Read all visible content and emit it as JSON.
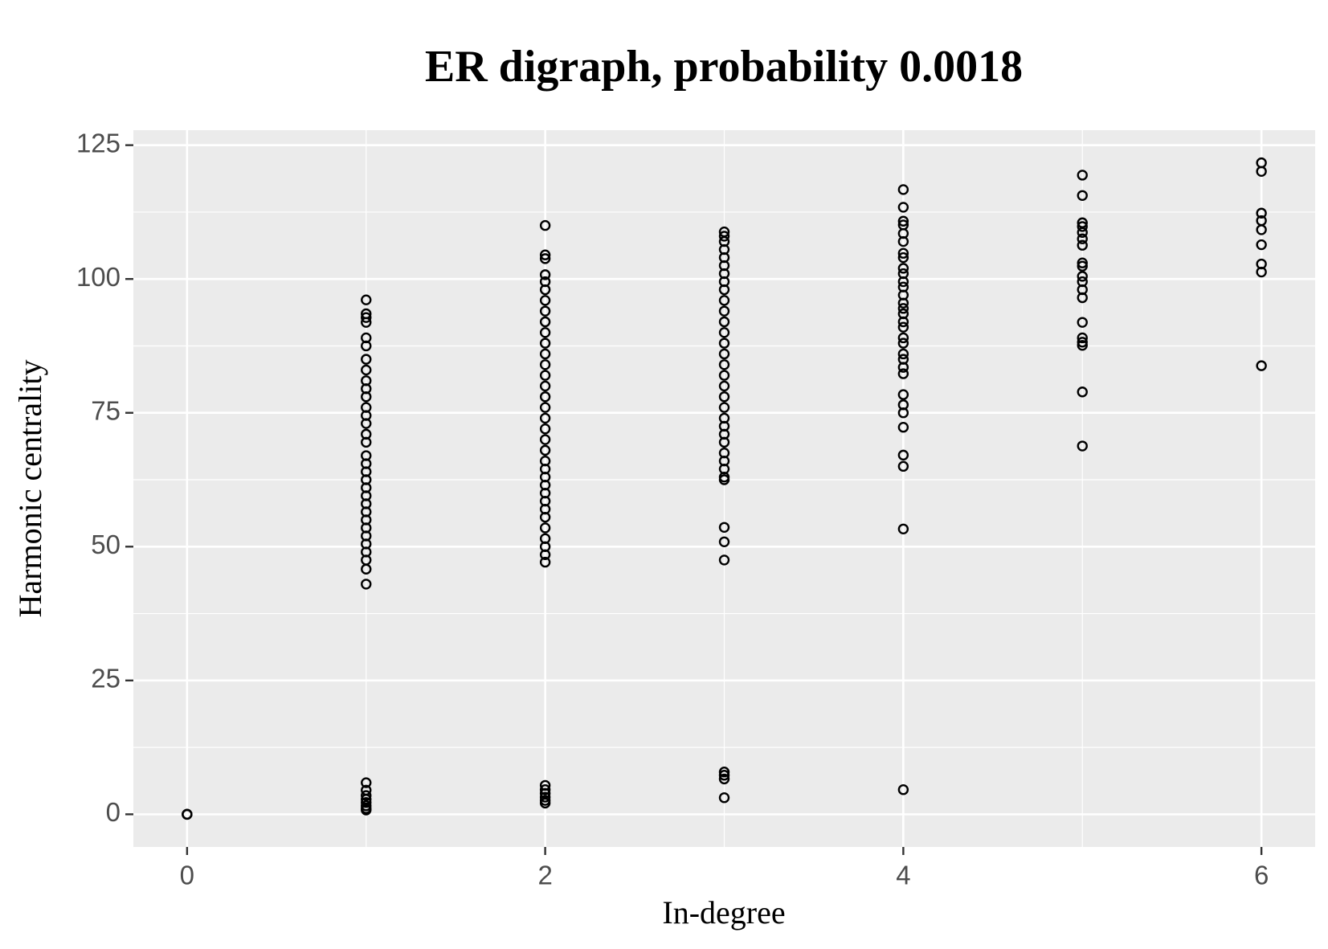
{
  "chart_data": {
    "type": "scatter",
    "title": "ER digraph, probability 0.0018",
    "x_label": "In-degree",
    "y_label": "Harmonic centrality",
    "x": [
      0,
      0,
      0,
      1,
      1,
      1,
      1,
      1,
      1,
      1,
      1,
      1,
      1,
      1,
      1,
      1,
      1,
      1,
      1,
      1,
      1,
      1,
      1,
      1,
      1,
      1,
      1,
      1,
      1,
      1,
      1,
      1,
      1,
      1,
      1,
      1,
      1,
      1,
      1,
      1,
      1,
      1,
      1,
      2,
      2,
      2,
      2,
      2,
      2,
      2,
      2,
      2,
      2,
      2,
      2,
      2,
      2,
      2,
      2,
      2,
      2,
      2,
      2,
      2,
      2,
      2,
      2,
      2,
      2,
      2,
      2,
      2,
      2,
      2,
      2,
      2,
      2,
      2,
      2,
      2,
      2,
      2,
      2,
      3,
      3,
      3,
      3,
      3,
      3,
      3,
      3,
      3,
      3,
      3,
      3,
      3,
      3,
      3,
      3,
      3,
      3,
      3,
      3,
      3,
      3,
      3,
      3,
      3,
      3,
      3,
      3,
      3,
      3,
      3,
      3,
      3,
      3,
      3,
      3,
      4,
      4,
      4,
      4,
      4,
      4,
      4,
      4,
      4,
      4,
      4,
      4,
      4,
      4,
      4,
      4,
      4,
      4,
      4,
      4,
      4,
      4,
      4,
      4,
      4,
      4,
      4,
      4,
      4,
      4,
      4,
      4,
      5,
      5,
      5,
      5,
      5,
      5,
      5,
      5,
      5,
      5,
      5,
      5,
      5,
      5,
      5,
      5,
      5,
      5,
      5,
      6,
      6,
      6,
      6,
      6,
      6,
      6,
      6,
      6
    ],
    "values": [
      0,
      0,
      0,
      96.1,
      93.5,
      92.8,
      91.9,
      89,
      87.5,
      85,
      83,
      81,
      79.5,
      78,
      76,
      74.5,
      73,
      71,
      69.5,
      67,
      65.5,
      64,
      62.5,
      61,
      59.5,
      58,
      56.5,
      55,
      53.5,
      52,
      50.5,
      49,
      47.5,
      45.8,
      43,
      5.9,
      4.5,
      3.5,
      2.8,
      2.2,
      1.6,
      1.1,
      0.8,
      110,
      104.5,
      103.8,
      100.8,
      99.5,
      98,
      96,
      94,
      92,
      90,
      88,
      86,
      84,
      82,
      80,
      78,
      76,
      74,
      72,
      70,
      68,
      66,
      64.5,
      63,
      61.5,
      60,
      58.5,
      57,
      55.5,
      53.5,
      51.5,
      50,
      48.5,
      47.1,
      5.4,
      4.6,
      3.9,
      3.2,
      2.6,
      2.1,
      108.8,
      108,
      107,
      105.5,
      104,
      102.5,
      101,
      99.5,
      98,
      96,
      94,
      92,
      90,
      88,
      86,
      84,
      82,
      80,
      78,
      76,
      74,
      72.5,
      71,
      69.5,
      67.5,
      66,
      64.5,
      63,
      62.5,
      53.6,
      50.9,
      47.5,
      7.9,
      7.3,
      6.6,
      3.1,
      116.7,
      113.4,
      110.8,
      110.1,
      108.5,
      107,
      104.8,
      104,
      102,
      101,
      99.5,
      98.5,
      97,
      95.5,
      94.5,
      93.5,
      92,
      91,
      89,
      88,
      86,
      85,
      83.5,
      82.3,
      78.4,
      76.5,
      75,
      72.3,
      67.1,
      65,
      53.3,
      4.6,
      119.4,
      115.6,
      110.5,
      109.8,
      108.7,
      107.5,
      106.3,
      103,
      102.4,
      100.5,
      99.5,
      98,
      96.5,
      91.9,
      89,
      88.2,
      87.6,
      78.9,
      68.8,
      121.7,
      120.1,
      112.3,
      110.9,
      109.2,
      106.4,
      102.8,
      101.3,
      83.8
    ],
    "color": "#000000",
    "xlim": [
      -0.3,
      6.3
    ],
    "xticks": [
      0,
      2,
      4,
      6
    ],
    "ylim": [
      -6.1,
      127.8
    ],
    "yticks": [
      0,
      25,
      50,
      75,
      100,
      125
    ],
    "grid": true
  }
}
